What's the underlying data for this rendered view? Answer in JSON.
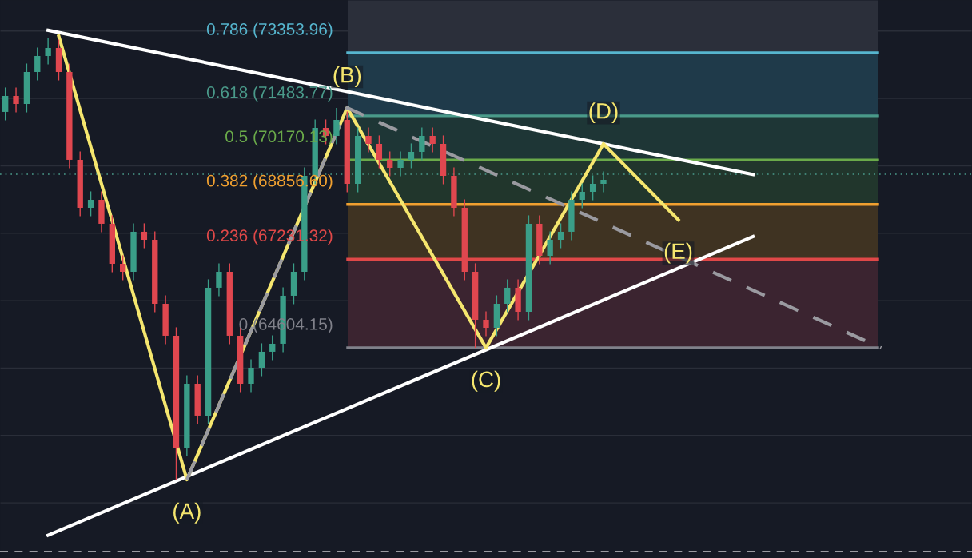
{
  "chart_data": {
    "type": "candlestick",
    "categories": [
      null,
      null,
      null,
      null,
      null,
      null,
      null,
      null,
      null,
      null,
      null,
      null,
      null,
      null,
      null,
      null,
      null,
      null,
      null,
      null,
      null,
      null,
      null,
      null,
      null,
      null,
      null,
      null,
      null,
      null,
      null,
      null,
      null,
      null,
      null,
      null,
      null,
      null,
      null,
      null,
      null,
      null,
      null,
      null,
      null,
      null,
      null,
      null,
      null,
      null,
      null,
      null,
      null,
      null,
      null,
      null,
      null,
      null,
      null,
      null,
      null,
      null,
      null,
      null,
      null,
      null,
      null,
      null,
      null,
      null,
      null,
      null,
      null,
      null,
      null,
      null,
      null,
      null,
      null,
      null,
      null,
      null,
      null,
      null,
      null,
      null,
      null,
      null,
      null,
      null,
      null
    ],
    "ohlc": [
      [
        71600,
        72324,
        71350,
        72074
      ],
      [
        72074,
        72324,
        71586,
        71836
      ],
      [
        71836,
        73035,
        71586,
        72785
      ],
      [
        72785,
        73509,
        72535,
        73259
      ],
      [
        73259,
        73781,
        73009,
        73496
      ],
      [
        73496,
        73746,
        72535,
        72785
      ],
      [
        72785,
        73035,
        69927,
        70177
      ],
      [
        70177,
        70427,
        68504,
        68754
      ],
      [
        68754,
        69241,
        68504,
        68991
      ],
      [
        68991,
        69241,
        68030,
        68280
      ],
      [
        68280,
        68530,
        66844,
        67094
      ],
      [
        67094,
        67344,
        66607,
        66857
      ],
      [
        66857,
        68293,
        66607,
        68043
      ],
      [
        68043,
        68293,
        67555,
        67805
      ],
      [
        67805,
        68055,
        65658,
        65908
      ],
      [
        65908,
        66158,
        64710,
        64960
      ],
      [
        64960,
        65210,
        60692,
        61640
      ],
      [
        61640,
        63787,
        61390,
        63537
      ],
      [
        63537,
        63787,
        62339,
        62589
      ],
      [
        62589,
        66633,
        62339,
        66383
      ],
      [
        66383,
        67107,
        66133,
        66857
      ],
      [
        66857,
        67107,
        64710,
        64960
      ],
      [
        64960,
        65210,
        63287,
        63537
      ],
      [
        63537,
        64261,
        63287,
        64011
      ],
      [
        64011,
        64736,
        63761,
        64486
      ],
      [
        64486,
        64973,
        64236,
        64723
      ],
      [
        64723,
        66396,
        64473,
        66146
      ],
      [
        66146,
        67107,
        65896,
        66857
      ],
      [
        66857,
        69952,
        66607,
        69702
      ],
      [
        69702,
        71375,
        69452,
        71125
      ],
      [
        71125,
        71375,
        70638,
        70888
      ],
      [
        70888,
        71718,
        70638,
        71362
      ],
      [
        71362,
        71612,
        69215,
        69465
      ],
      [
        69465,
        71138,
        69215,
        70888
      ],
      [
        70888,
        71138,
        70401,
        70651
      ],
      [
        70651,
        70901,
        69927,
        70177
      ],
      [
        70177,
        70427,
        69689,
        69939
      ],
      [
        69939,
        70427,
        69689,
        70177
      ],
      [
        70177,
        70664,
        69927,
        70414
      ],
      [
        70414,
        71138,
        70164,
        70888
      ],
      [
        70888,
        71138,
        70401,
        70651
      ],
      [
        70651,
        70901,
        69452,
        69702
      ],
      [
        69702,
        69952,
        68504,
        68754
      ],
      [
        68754,
        69004,
        66607,
        66857
      ],
      [
        66857,
        67107,
        64604,
        65434
      ],
      [
        65434,
        65684,
        64947,
        65197
      ],
      [
        65197,
        66158,
        64947,
        65908
      ],
      [
        65908,
        66633,
        65658,
        66383
      ],
      [
        66383,
        66633,
        65421,
        65671
      ],
      [
        65671,
        68530,
        65421,
        68280
      ],
      [
        68280,
        68530,
        67081,
        67331
      ],
      [
        67331,
        68055,
        67081,
        67805
      ],
      [
        67805,
        68293,
        67555,
        68043
      ],
      [
        68043,
        69241,
        67793,
        68991
      ],
      [
        68991,
        69478,
        68741,
        69228
      ],
      [
        69228,
        69715,
        68978,
        69465
      ],
      [
        69465,
        69834,
        69215,
        69584
      ],
      null,
      null,
      null,
      null,
      null,
      null,
      null,
      null,
      null,
      null,
      null,
      null,
      null,
      null,
      null,
      null,
      null,
      null,
      null,
      null,
      null,
      null,
      null,
      null,
      null,
      null,
      null,
      null,
      null,
      null,
      null,
      null,
      null,
      null
    ],
    "series": [
      {
        "type": "line",
        "color": "#ffffff",
        "values": [
          null,
          null,
          null,
          null,
          74020,
          null,
          null,
          null,
          null,
          null,
          null,
          null,
          null,
          null,
          null,
          null,
          null,
          null,
          null,
          null,
          null,
          null,
          null,
          null,
          null,
          null,
          null,
          null,
          null,
          null,
          null,
          null,
          null,
          null,
          null,
          null,
          null,
          null,
          null,
          null,
          null,
          null,
          null,
          null,
          null,
          null,
          null,
          null,
          null,
          null,
          null,
          null,
          null,
          null,
          null,
          null,
          null,
          null,
          null,
          null,
          null,
          null,
          null,
          null,
          null,
          null,
          null,
          null,
          null,
          null,
          69740,
          null,
          null,
          null,
          null,
          null,
          null,
          null,
          null,
          null,
          null,
          null,
          null,
          null,
          null,
          null,
          null,
          null,
          null,
          null,
          null
        ]
      },
      {
        "type": "line",
        "color": "#ffffff",
        "values": [
          null,
          null,
          null,
          null,
          59040,
          null,
          null,
          null,
          null,
          null,
          null,
          null,
          null,
          null,
          null,
          null,
          null,
          null,
          null,
          null,
          null,
          null,
          null,
          null,
          null,
          null,
          null,
          null,
          null,
          null,
          null,
          null,
          null,
          null,
          null,
          null,
          null,
          null,
          null,
          null,
          null,
          null,
          null,
          null,
          null,
          null,
          null,
          null,
          null,
          null,
          null,
          null,
          null,
          null,
          null,
          null,
          null,
          null,
          null,
          null,
          null,
          null,
          null,
          null,
          null,
          null,
          null,
          null,
          null,
          null,
          67900,
          null,
          null,
          null,
          null,
          null,
          null,
          null,
          null,
          null,
          null,
          null,
          null,
          null,
          null,
          null,
          null,
          null,
          null,
          null,
          null
        ]
      },
      {
        "type": "line",
        "color": "#f5e66e",
        "values": [
          null,
          null,
          null,
          null,
          null,
          73850,
          null,
          null,
          null,
          null,
          null,
          null,
          null,
          null,
          null,
          null,
          null,
          60690,
          null,
          null,
          null,
          null,
          null,
          null,
          null,
          null,
          null,
          null,
          null,
          null,
          null,
          null,
          71720,
          null,
          null,
          null,
          null,
          null,
          null,
          null,
          null,
          null,
          null,
          null,
          null,
          64600,
          null,
          null,
          null,
          null,
          null,
          null,
          null,
          null,
          null,
          null,
          70650,
          null,
          null,
          null,
          null,
          null,
          null,
          68400,
          null,
          null,
          null,
          null,
          null,
          null,
          null,
          null,
          null,
          null,
          null,
          null,
          null,
          null,
          null,
          null,
          null,
          null,
          null,
          null,
          null,
          null,
          null,
          null,
          null,
          null,
          null
        ]
      },
      {
        "type": "line",
        "color": "#9a9aa0",
        "line_style": "dashed",
        "values": [
          null,
          null,
          null,
          null,
          null,
          null,
          null,
          null,
          null,
          null,
          null,
          null,
          null,
          null,
          null,
          null,
          null,
          60690,
          null,
          null,
          null,
          null,
          null,
          null,
          null,
          null,
          null,
          null,
          null,
          null,
          null,
          null,
          71720,
          null,
          null,
          null,
          null,
          null,
          null,
          null,
          null,
          null,
          null,
          null,
          null,
          null,
          null,
          null,
          null,
          null,
          null,
          null,
          null,
          null,
          null,
          null,
          null,
          null,
          null,
          null,
          null,
          null,
          null,
          null,
          null,
          null,
          null,
          null,
          null,
          null,
          null,
          null,
          null,
          null,
          null,
          null,
          null,
          null,
          null,
          null,
          null,
          null,
          64600,
          null,
          null,
          null,
          null,
          null,
          null,
          null,
          null
        ]
      }
    ],
    "ylim": [
      58367,
      74919
    ],
    "yticks": [
      {
        "value": 60000,
        "label": null
      },
      {
        "value": 62000,
        "label": null
      },
      {
        "value": 64000,
        "label": null
      },
      {
        "value": 66000,
        "label": null
      },
      {
        "value": 68000,
        "label": null
      },
      {
        "value": 70000,
        "label": null
      },
      {
        "value": 72000,
        "label": null
      },
      {
        "value": 74000,
        "label": null
      }
    ],
    "grid": "y",
    "ref_lines": [
      {
        "axis": "y",
        "value": 73353.96,
        "label": "0.786 (73353.96)",
        "color": "#56b6cf"
      },
      {
        "axis": "y",
        "value": 71483.77,
        "label": "0.618 (71483.77)",
        "color": "#4a9a8a"
      },
      {
        "axis": "y",
        "value": 70170.13,
        "label": "0.5 (70170.13)",
        "color": "#6aaa4a"
      },
      {
        "axis": "y",
        "value": 68856.6,
        "label": "0.382 (68856.60)",
        "color": "#f0a030"
      },
      {
        "axis": "y",
        "value": 67231.32,
        "label": "0.236 (67231.32)",
        "color": "#e04848"
      },
      {
        "axis": "y",
        "value": 64604.15,
        "label": "0 (64604.15)",
        "color": "#80818a"
      },
      {
        "axis": "y",
        "value": 69750,
        "color": "#4a9a8a",
        "line_style": "dotted"
      },
      {
        "axis": "y",
        "value": 58558,
        "color": "#9a9aa0",
        "line_style": "dashed"
      }
    ],
    "bands": [
      {
        "axis": "y",
        "from": 73353.96,
        "to": 74919,
        "color": "#2b2f3a"
      },
      {
        "axis": "y",
        "from": 71483.77,
        "to": 73353.96,
        "color": "#1f3a4a"
      },
      {
        "axis": "y",
        "from": 70170.13,
        "to": 71483.77,
        "color": "#1e3636"
      },
      {
        "axis": "y",
        "from": 68856.6,
        "to": 70170.13,
        "color": "#21362c"
      },
      {
        "axis": "y",
        "from": 67231.32,
        "to": 68856.6,
        "color": "#3f3322"
      },
      {
        "axis": "y",
        "from": 64604.15,
        "to": 67231.32,
        "color": "#3b2430"
      }
    ],
    "annotations": [
      "(A)",
      "(B)",
      "(C)",
      "(D)",
      "(E)"
    ]
  }
}
